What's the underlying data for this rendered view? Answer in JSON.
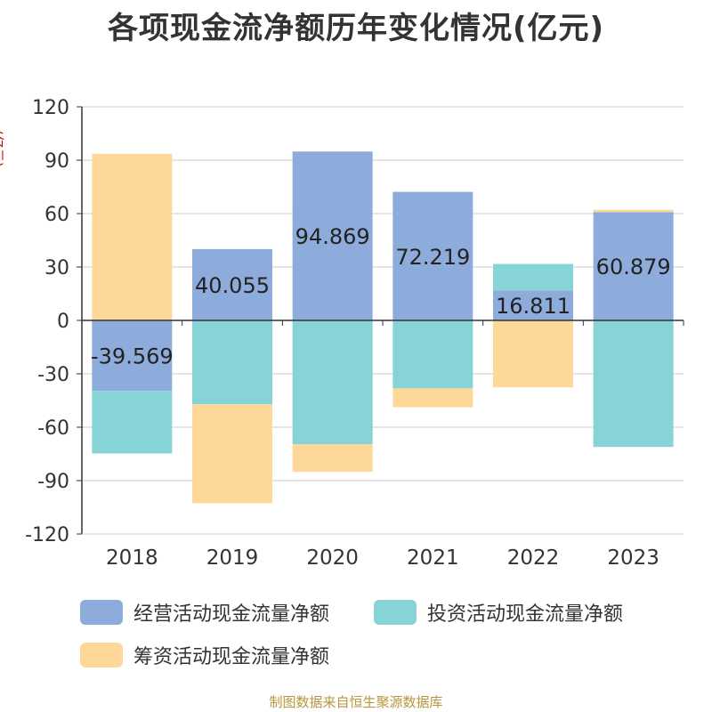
{
  "title": "各项现金流净额历年变化情况(亿元)",
  "source": "制图数据来自恒生聚源数据库",
  "chart_data": {
    "type": "bar",
    "stacked": true,
    "unit": "(亿元)",
    "categories": [
      "2018",
      "2019",
      "2020",
      "2021",
      "2022",
      "2023"
    ],
    "ylim": [
      -120,
      120
    ],
    "yticks": [
      120,
      90,
      60,
      30,
      0,
      -30,
      -60,
      -90,
      -120
    ],
    "grid": true,
    "legend_position": "bottom",
    "series": [
      {
        "name": "经营活动现金流量净额",
        "color": "#8eacdb",
        "values": [
          -39.569,
          40.055,
          94.869,
          72.219,
          16.811,
          60.879
        ],
        "labels": [
          "-39.569",
          "40.055",
          "94.869",
          "72.219",
          "16.811",
          "60.879"
        ]
      },
      {
        "name": "投资活动现金流量净额",
        "color": "#86d4d6",
        "values": [
          -35.2,
          -47.1,
          -69.6,
          -38.2,
          14.9,
          -71.1
        ]
      },
      {
        "name": "筹资活动现金流量净额",
        "color": "#fdd898",
        "values": [
          93.6,
          -55.6,
          -15.5,
          -10.6,
          -37.6,
          1.3
        ]
      }
    ]
  }
}
